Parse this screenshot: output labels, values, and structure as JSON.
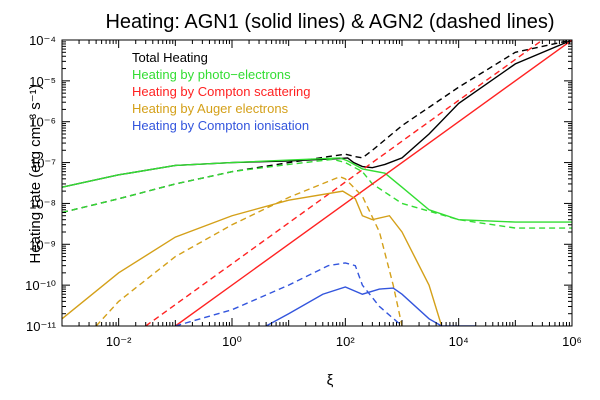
{
  "chart_data": {
    "type": "line",
    "title": "Heating: AGN1 (solid lines) & AGN2 (dashed lines)",
    "xlabel": "ξ",
    "ylabel": "Heating rate (erg cm⁻³ s⁻¹)",
    "x_scale": "log",
    "y_scale": "log",
    "xlim": [
      0.001,
      1000000
    ],
    "ylim": [
      1e-11,
      0.0001
    ],
    "x_ticks": [
      {
        "value": 0.01,
        "label": "10⁻²"
      },
      {
        "value": 1,
        "label": "10⁰"
      },
      {
        "value": 100,
        "label": "10²"
      },
      {
        "value": 10000,
        "label": "10⁴"
      },
      {
        "value": 1000000,
        "label": "10⁶"
      }
    ],
    "y_ticks": [
      {
        "value": 1e-11,
        "label": "10⁻¹¹"
      },
      {
        "value": 1e-10,
        "label": "10⁻¹⁰"
      },
      {
        "value": 1e-09,
        "label": "10⁻⁹"
      },
      {
        "value": 1e-08,
        "label": "10⁻⁸"
      },
      {
        "value": 1e-07,
        "label": "10⁻⁷"
      },
      {
        "value": 1e-06,
        "label": "10⁻⁶"
      },
      {
        "value": 1e-05,
        "label": "10⁻⁵"
      },
      {
        "value": 0.0001,
        "label": "10⁻⁴"
      }
    ],
    "legend": [
      {
        "label": "Total Heating",
        "color": "#000000"
      },
      {
        "label": "Heating by photo−electrons",
        "color": "#33dd33"
      },
      {
        "label": "Heating by Compton scattering",
        "color": "#ff2222"
      },
      {
        "label": "Heating by Auger electrons",
        "color": "#d4a019"
      },
      {
        "label": "Heating by Compton ionisation",
        "color": "#3355dd"
      }
    ],
    "series": [
      {
        "name": "Total Heating (AGN1)",
        "color": "#000000",
        "dash": false,
        "points": [
          [
            0.001,
            2.5e-08
          ],
          [
            0.01,
            5e-08
          ],
          [
            0.1,
            8.5e-08
          ],
          [
            1,
            1e-07
          ],
          [
            10,
            1.1e-07
          ],
          [
            80,
            1.25e-07
          ],
          [
            110,
            1.3e-07
          ],
          [
            140,
            1e-07
          ],
          [
            200,
            8e-08
          ],
          [
            300,
            7.5e-08
          ],
          [
            500,
            9e-08
          ],
          [
            1000,
            1.3e-07
          ],
          [
            3000,
            5e-07
          ],
          [
            10000,
            2.8e-06
          ],
          [
            100000,
            2.6e-05
          ],
          [
            1000000,
            0.0001
          ]
        ]
      },
      {
        "name": "Total Heating (AGN2)",
        "color": "#000000",
        "dash": true,
        "points": [
          [
            0.001,
            6e-09
          ],
          [
            0.01,
            1.3e-08
          ],
          [
            0.1,
            3e-08
          ],
          [
            1,
            6e-08
          ],
          [
            10,
            1e-07
          ],
          [
            50,
            1.4e-07
          ],
          [
            100,
            1.6e-07
          ],
          [
            150,
            1.4e-07
          ],
          [
            200,
            1.3e-07
          ],
          [
            300,
            2e-07
          ],
          [
            1000,
            8e-07
          ],
          [
            10000,
            7e-06
          ],
          [
            100000,
            5e-05
          ],
          [
            1000000,
            0.0001
          ]
        ]
      },
      {
        "name": "Heating by photo-electrons (AGN1)",
        "color": "#33dd33",
        "dash": false,
        "points": [
          [
            0.001,
            2.5e-08
          ],
          [
            0.01,
            5e-08
          ],
          [
            0.1,
            8.5e-08
          ],
          [
            1,
            1e-07
          ],
          [
            10,
            1.15e-07
          ],
          [
            80,
            1.3e-07
          ],
          [
            110,
            1.1e-07
          ],
          [
            200,
            7e-08
          ],
          [
            500,
            5.5e-08
          ],
          [
            1000,
            2.5e-08
          ],
          [
            3000,
            7e-09
          ],
          [
            10000,
            4e-09
          ],
          [
            100000,
            3.5e-09
          ],
          [
            1000000,
            3.5e-09
          ]
        ]
      },
      {
        "name": "Heating by photo-electrons (AGN2)",
        "color": "#33dd33",
        "dash": true,
        "points": [
          [
            0.001,
            6e-09
          ],
          [
            0.01,
            1.3e-08
          ],
          [
            0.1,
            3e-08
          ],
          [
            1,
            6e-08
          ],
          [
            10,
            9e-08
          ],
          [
            60,
            1.2e-07
          ],
          [
            100,
            1e-07
          ],
          [
            200,
            6e-08
          ],
          [
            300,
            3e-08
          ],
          [
            1000,
            1e-08
          ],
          [
            10000,
            4e-09
          ],
          [
            100000,
            2.5e-09
          ],
          [
            1000000,
            2.5e-09
          ]
        ]
      },
      {
        "name": "Heating by Compton scattering (AGN1)",
        "color": "#ff2222",
        "dash": false,
        "points": [
          [
            0.1,
            1e-11
          ],
          [
            1000000,
            0.0001
          ]
        ]
      },
      {
        "name": "Heating by Compton scattering (AGN2)",
        "color": "#ff2222",
        "dash": true,
        "points": [
          [
            0.03,
            1e-11
          ],
          [
            300000,
            0.0001
          ]
        ]
      },
      {
        "name": "Heating by Auger electrons (AGN1)",
        "color": "#d4a019",
        "dash": false,
        "points": [
          [
            0.001,
            1.5e-11
          ],
          [
            0.01,
            2e-10
          ],
          [
            0.1,
            1.5e-09
          ],
          [
            1,
            5e-09
          ],
          [
            10,
            1.2e-08
          ],
          [
            90,
            2e-08
          ],
          [
            150,
            1.3e-08
          ],
          [
            200,
            5e-09
          ],
          [
            300,
            4e-09
          ],
          [
            600,
            5e-09
          ],
          [
            1000,
            2e-09
          ],
          [
            3000,
            1e-10
          ],
          [
            5000,
            1e-11
          ]
        ]
      },
      {
        "name": "Heating by Auger electrons (AGN2)",
        "color": "#d4a019",
        "dash": true,
        "points": [
          [
            0.004,
            1e-11
          ],
          [
            0.01,
            4e-11
          ],
          [
            0.1,
            5e-10
          ],
          [
            1,
            3e-09
          ],
          [
            10,
            1.4e-08
          ],
          [
            80,
            4.5e-08
          ],
          [
            100,
            4e-08
          ],
          [
            200,
            1.5e-08
          ],
          [
            400,
            2e-09
          ],
          [
            700,
            1e-10
          ],
          [
            1000,
            1e-11
          ]
        ]
      },
      {
        "name": "Heating by Compton ionisation (AGN1)",
        "color": "#3355dd",
        "dash": false,
        "points": [
          [
            4,
            1e-11
          ],
          [
            10,
            2e-11
          ],
          [
            40,
            6e-11
          ],
          [
            100,
            9e-11
          ],
          [
            200,
            6e-11
          ],
          [
            400,
            8e-11
          ],
          [
            700,
            8.5e-11
          ],
          [
            1000,
            6e-11
          ],
          [
            3000,
            1.5e-11
          ],
          [
            5000,
            1e-11
          ],
          [
            20000,
            1e-11
          ]
        ]
      },
      {
        "name": "Heating by Compton ionisation (AGN2)",
        "color": "#3355dd",
        "dash": true,
        "points": [
          [
            0.1,
            1e-11
          ],
          [
            1,
            2.5e-11
          ],
          [
            10,
            1e-10
          ],
          [
            50,
            3e-10
          ],
          [
            100,
            3.5e-10
          ],
          [
            150,
            3e-10
          ],
          [
            200,
            1e-10
          ],
          [
            400,
            3e-11
          ],
          [
            1000,
            1e-11
          ]
        ]
      }
    ]
  }
}
